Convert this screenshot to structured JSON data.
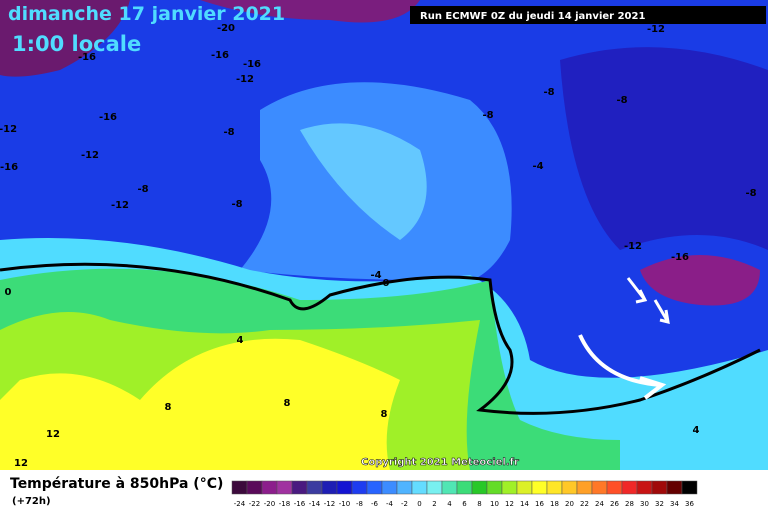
{
  "header": {
    "title": "dimanche 17 janvier 2021",
    "subtitle": "1:00 locale",
    "run": "Run ECMWF 0Z du jeudi 14 janvier 2021"
  },
  "map": {
    "labels": [
      "-16",
      "-20",
      "-16",
      "-16",
      "-12",
      "-16",
      "-12",
      "-12",
      "-16",
      "-8",
      "-8",
      "-12",
      "-8",
      "-8",
      "-8",
      "-8",
      "-12",
      "-4",
      "-8",
      "-12",
      "-16",
      "-4",
      "0",
      "0",
      "4",
      "8",
      "8",
      "8",
      "12",
      "12",
      "4"
    ],
    "copyright": "Copyright 2021 Meteociel.fr"
  },
  "footer": {
    "caption": "Température à 850hPa (°C)",
    "horizon": "(+72h)"
  },
  "colorbar": {
    "ticks": [
      -24,
      -22,
      -20,
      -18,
      -16,
      -14,
      -12,
      -10,
      -8,
      -6,
      -4,
      -2,
      0,
      2,
      4,
      6,
      8,
      10,
      12,
      14,
      16,
      18,
      20,
      22,
      24,
      26,
      28,
      30,
      32,
      34,
      36
    ],
    "colors": [
      "#3c0a3c",
      "#5a0a5a",
      "#8c1e8c",
      "#a032a0",
      "#4a1a80",
      "#3c3ca0",
      "#1e1eb4",
      "#1414d2",
      "#1e3cf0",
      "#2864ff",
      "#3c8cff",
      "#50b4ff",
      "#64dcff",
      "#78f0f0",
      "#50e6b4",
      "#3cdc78",
      "#28c828",
      "#64dc28",
      "#a0f028",
      "#dcf028",
      "#ffff28",
      "#ffe628",
      "#ffc828",
      "#ffa028",
      "#ff7828",
      "#ff5028",
      "#f02828",
      "#c81414",
      "#a00a0a",
      "#640000",
      "#000000"
    ]
  }
}
